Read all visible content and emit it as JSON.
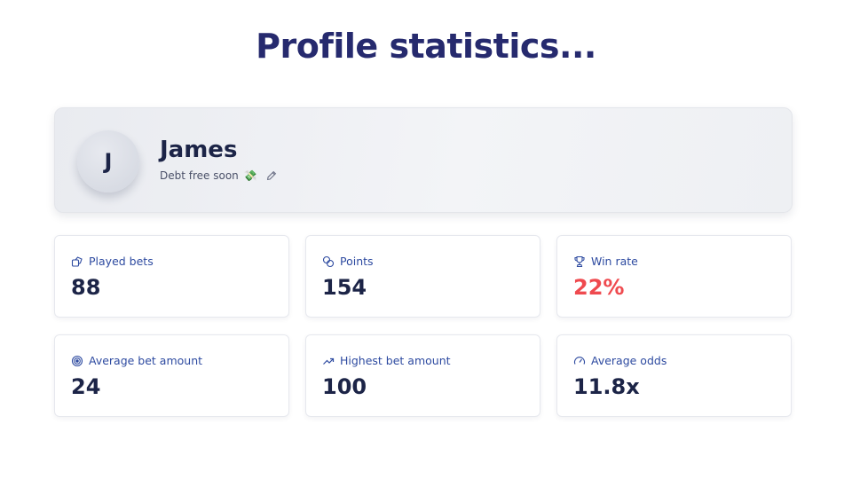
{
  "page": {
    "title": "Profile statistics..."
  },
  "profile": {
    "avatar_initial": "J",
    "name": "James",
    "bio": "Debt free soon",
    "bio_emoji": "💸"
  },
  "stats": [
    {
      "label": "Played bets",
      "value": "88",
      "icon": "dice-icon"
    },
    {
      "label": "Points",
      "value": "154",
      "icon": "coins-icon"
    },
    {
      "label": "Win rate",
      "value": "22%",
      "icon": "trophy-icon",
      "value_color": "#ef4a4f"
    },
    {
      "label": "Average bet amount",
      "value": "24",
      "icon": "target-icon"
    },
    {
      "label": "Highest bet amount",
      "value": "100",
      "icon": "trending-up-icon"
    },
    {
      "label": "Average odds",
      "value": "11.8x",
      "icon": "gauge-icon"
    }
  ],
  "colors": {
    "title": "#262a6e",
    "label": "#2d4aa0",
    "value": "#1c2447",
    "win_rate": "#ef4a4f"
  }
}
